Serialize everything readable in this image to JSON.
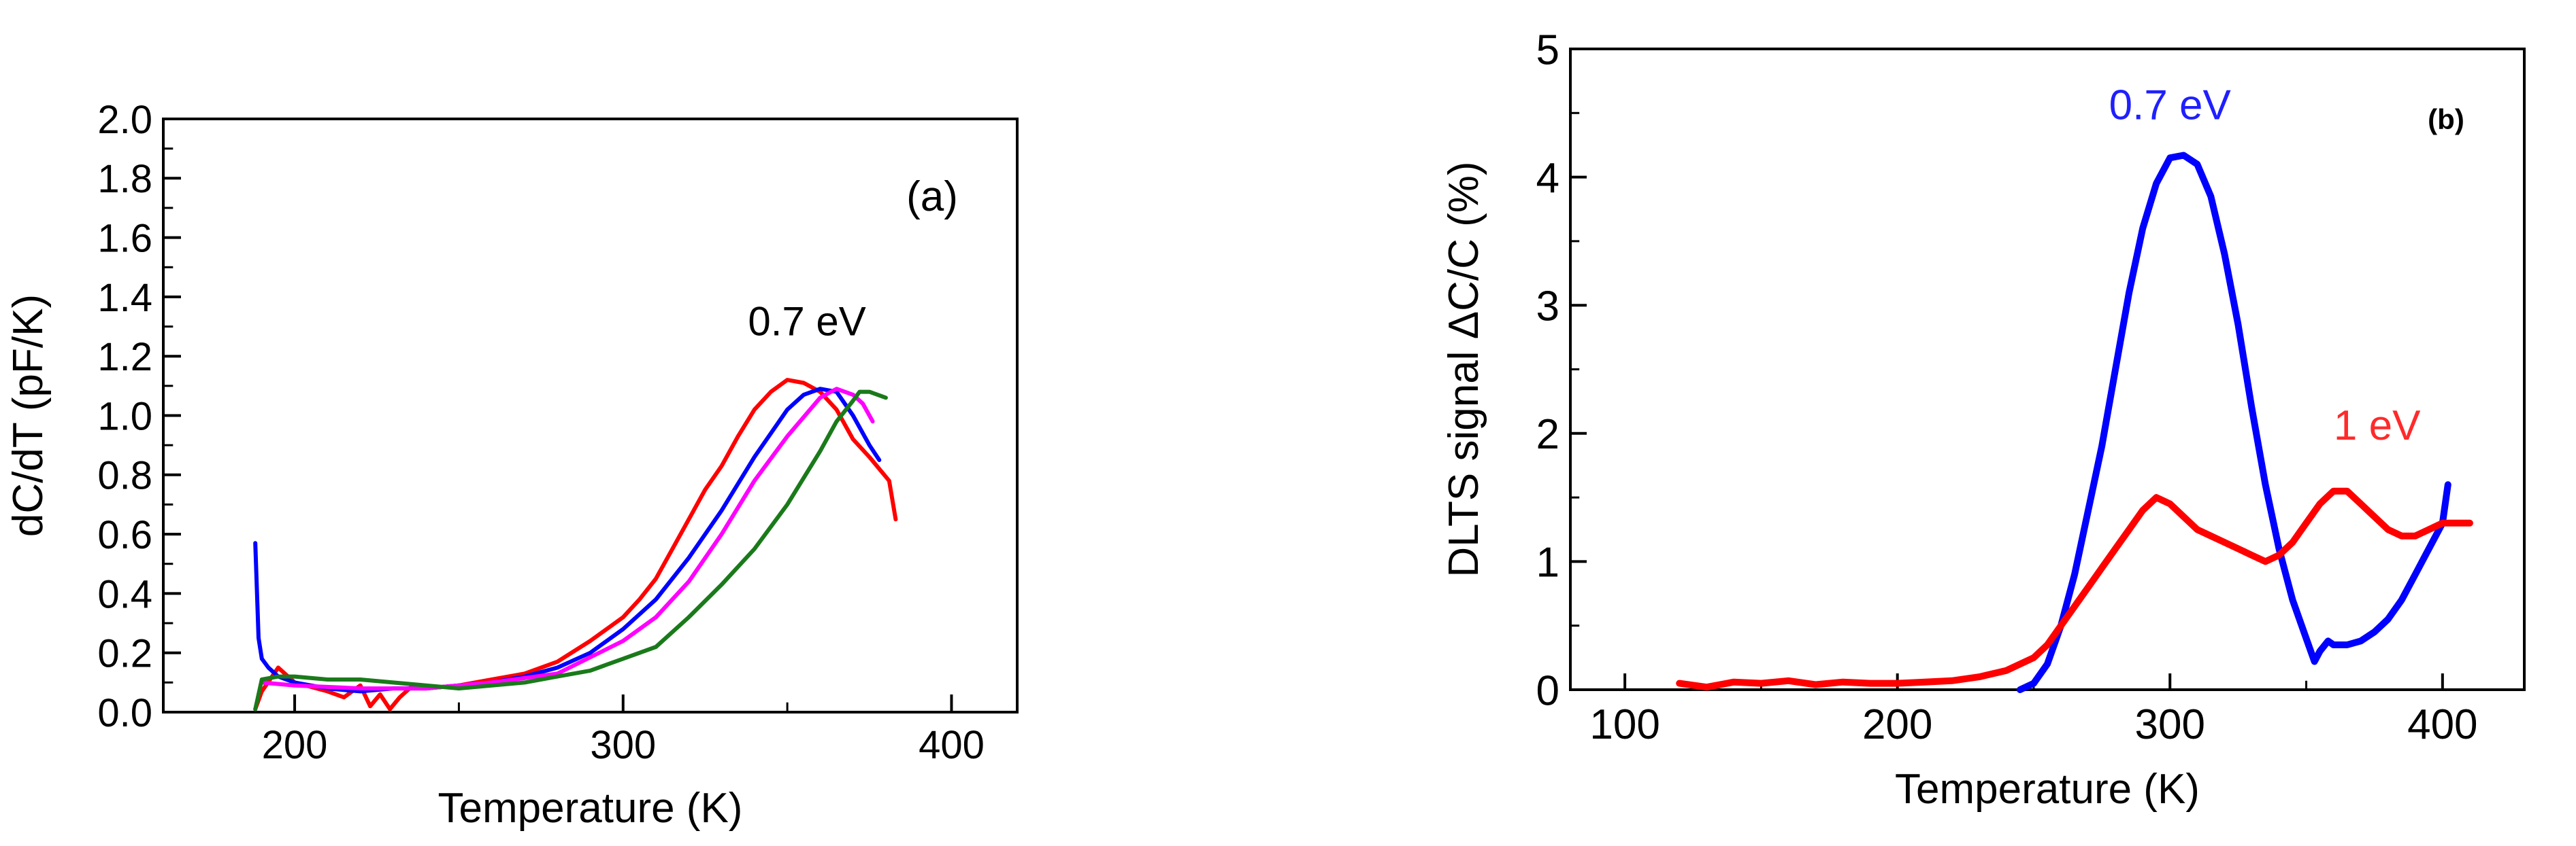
{
  "chart_data": [
    {
      "type": "line",
      "panel_label": "(a)",
      "xlabel": "Temperature (K)",
      "ylabel": "dC/dT (pF/K)",
      "xlim": [
        160,
        420
      ],
      "ylim": [
        0,
        2.0
      ],
      "xticks": [
        200,
        300,
        400
      ],
      "xtick_labels": [
        "200",
        "300",
        "400"
      ],
      "yticks": [
        0,
        0.2,
        0.4,
        0.6,
        0.8,
        1.0,
        1.2,
        1.4,
        1.6,
        1.8,
        2.0
      ],
      "ytick_labels": [
        "0.0",
        "0.2",
        "0.4",
        "0.6",
        "0.8",
        "1.0",
        "1.2",
        "1.4",
        "1.6",
        "1.8",
        "2.0"
      ],
      "grid": false,
      "annotations": [
        {
          "text": "0.7 eV",
          "x": 356,
          "y": 1.27,
          "color": "#000000"
        }
      ],
      "series": [
        {
          "name": "red",
          "color": "#ff0000",
          "x": [
            188,
            190,
            195,
            200,
            210,
            215,
            220,
            223,
            226,
            229,
            232,
            236,
            240,
            250,
            260,
            270,
            280,
            290,
            300,
            305,
            310,
            315,
            320,
            325,
            330,
            335,
            340,
            345,
            350,
            355,
            360,
            365,
            370,
            375,
            378,
            381,
            383
          ],
          "y": [
            0.01,
            0.07,
            0.15,
            0.1,
            0.07,
            0.05,
            0.09,
            0.02,
            0.06,
            0.01,
            0.05,
            0.09,
            0.08,
            0.09,
            0.11,
            0.13,
            0.17,
            0.24,
            0.32,
            0.38,
            0.45,
            0.55,
            0.65,
            0.75,
            0.83,
            0.93,
            1.02,
            1.08,
            1.12,
            1.11,
            1.08,
            1.02,
            0.92,
            0.86,
            0.82,
            0.78,
            0.65
          ]
        },
        {
          "name": "blue",
          "color": "#0000ff",
          "x": [
            188,
            189,
            190,
            192,
            195,
            200,
            210,
            220,
            230,
            240,
            250,
            260,
            270,
            280,
            290,
            300,
            310,
            320,
            330,
            340,
            350,
            355,
            360,
            365,
            370,
            375,
            378
          ],
          "y": [
            0.57,
            0.25,
            0.18,
            0.15,
            0.12,
            0.1,
            0.08,
            0.07,
            0.08,
            0.08,
            0.09,
            0.1,
            0.12,
            0.15,
            0.2,
            0.28,
            0.38,
            0.52,
            0.68,
            0.86,
            1.02,
            1.07,
            1.09,
            1.08,
            1.0,
            0.9,
            0.85
          ]
        },
        {
          "name": "magenta",
          "color": "#ff00ff",
          "x": [
            190,
            200,
            220,
            240,
            260,
            280,
            300,
            310,
            320,
            330,
            340,
            350,
            360,
            365,
            370,
            373,
            376
          ],
          "y": [
            0.1,
            0.09,
            0.08,
            0.08,
            0.1,
            0.13,
            0.24,
            0.32,
            0.44,
            0.6,
            0.78,
            0.93,
            1.06,
            1.09,
            1.07,
            1.04,
            0.98
          ]
        },
        {
          "name": "green",
          "color": "#1a7a1a",
          "x": [
            188,
            190,
            195,
            200,
            210,
            220,
            230,
            240,
            250,
            260,
            270,
            280,
            290,
            300,
            310,
            320,
            330,
            340,
            350,
            360,
            365,
            370,
            372,
            375,
            380
          ],
          "y": [
            0.01,
            0.11,
            0.12,
            0.12,
            0.11,
            0.11,
            0.1,
            0.09,
            0.08,
            0.09,
            0.1,
            0.12,
            0.14,
            0.18,
            0.22,
            0.32,
            0.43,
            0.55,
            0.7,
            0.88,
            0.98,
            1.05,
            1.08,
            1.08,
            1.06
          ]
        }
      ]
    },
    {
      "type": "line",
      "panel_label": "(b)",
      "xlabel": "Temperature (K)",
      "ylabel": "DLTS signal ΔC/C (%)",
      "xlim": [
        80,
        430
      ],
      "ylim": [
        0,
        5
      ],
      "xticks": [
        100,
        200,
        300,
        400
      ],
      "xtick_labels": [
        "100",
        "200",
        "300",
        "400"
      ],
      "yticks": [
        0,
        1,
        2,
        3,
        4,
        5
      ],
      "ytick_labels": [
        "0",
        "1",
        "2",
        "3",
        "4",
        "5"
      ],
      "grid": false,
      "annotations": [
        {
          "text": "0.7 eV",
          "x": 300,
          "y": 4.45,
          "color": "#1f1fff"
        },
        {
          "text": "1 eV",
          "x": 376,
          "y": 1.95,
          "color": "#ff2a2a"
        }
      ],
      "series": [
        {
          "name": "0.7 eV",
          "color": "#0000ff",
          "x": [
            245,
            250,
            255,
            260,
            265,
            270,
            275,
            280,
            285,
            290,
            295,
            300,
            305,
            310,
            315,
            320,
            325,
            330,
            335,
            340,
            345,
            350,
            353,
            355,
            358,
            360,
            365,
            370,
            375,
            380,
            385,
            390,
            395,
            400,
            402
          ],
          "y": [
            0.0,
            0.05,
            0.2,
            0.5,
            0.9,
            1.4,
            1.9,
            2.5,
            3.1,
            3.6,
            3.95,
            4.15,
            4.17,
            4.1,
            3.85,
            3.4,
            2.85,
            2.2,
            1.6,
            1.1,
            0.7,
            0.4,
            0.22,
            0.3,
            0.38,
            0.35,
            0.35,
            0.38,
            0.45,
            0.55,
            0.7,
            0.9,
            1.1,
            1.3,
            1.6
          ]
        },
        {
          "name": "1 eV",
          "color": "#ff0000",
          "x": [
            120,
            130,
            140,
            150,
            160,
            170,
            180,
            190,
            200,
            210,
            220,
            230,
            240,
            250,
            255,
            260,
            265,
            270,
            275,
            280,
            285,
            290,
            295,
            300,
            305,
            310,
            315,
            320,
            325,
            330,
            335,
            340,
            345,
            350,
            355,
            360,
            365,
            370,
            375,
            380,
            385,
            390,
            395,
            400,
            405,
            410
          ],
          "y": [
            0.05,
            0.02,
            0.06,
            0.05,
            0.07,
            0.04,
            0.06,
            0.05,
            0.05,
            0.06,
            0.07,
            0.1,
            0.15,
            0.25,
            0.35,
            0.5,
            0.65,
            0.8,
            0.95,
            1.1,
            1.25,
            1.4,
            1.5,
            1.45,
            1.35,
            1.25,
            1.2,
            1.15,
            1.1,
            1.05,
            1.0,
            1.05,
            1.15,
            1.3,
            1.45,
            1.55,
            1.55,
            1.45,
            1.35,
            1.25,
            1.2,
            1.2,
            1.25,
            1.3,
            1.3,
            1.3
          ]
        }
      ]
    }
  ]
}
